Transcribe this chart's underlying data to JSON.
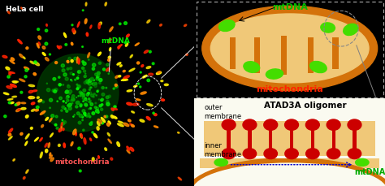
{
  "fig_width": 4.74,
  "fig_height": 2.29,
  "dpi": 100,
  "left_panel": {
    "bg_color": "#000000",
    "hela_label": "HeLa cell",
    "mtdna_label": "mtDNA",
    "mito_label": "mitochondria",
    "label_color_white": "#ffffff",
    "label_color_green": "#00ee00",
    "label_color_red": "#ff5555"
  },
  "top_right": {
    "bg_color": "#ffffff",
    "mito_outer_color": "#d4720a",
    "mito_inner_color": "#f0c878",
    "cristae_color": "#d4720a",
    "mtdna_color": "#44dd00",
    "mtdna_label": "mtDNA",
    "mito_label": "mitochondria",
    "label_color_green": "#00bb00",
    "label_color_red": "#ff2200",
    "arrow_color": "#000000"
  },
  "bottom_right": {
    "bg_color": "#fafaf0",
    "outer_mem_color": "#d4720a",
    "inner_mem_color": "#d4720a",
    "fill_color": "#f0c878",
    "protein_color": "#cc0000",
    "mtdna_color": "#44dd00",
    "arrow_color": "#0000cc",
    "outer_label": "outer\nmembrane",
    "inner_label": "inner\nmembrane",
    "protein_label": "ATAD3A oligomer",
    "mtdna_label": "mtDNA"
  }
}
